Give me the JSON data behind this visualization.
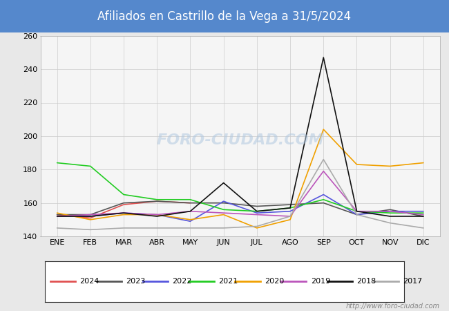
{
  "title": "Afiliados en Castrillo de la Vega a 31/5/2024",
  "title_bg_color": "#5588cc",
  "title_text_color": "#ffffff",
  "ylim": [
    140,
    260
  ],
  "yticks": [
    140,
    160,
    180,
    200,
    220,
    240,
    260
  ],
  "months": [
    "ENE",
    "FEB",
    "MAR",
    "ABR",
    "MAY",
    "JUN",
    "JUL",
    "AGO",
    "SEP",
    "OCT",
    "NOV",
    "DIC"
  ],
  "series": {
    "2024": {
      "color": "#e05050",
      "data": [
        153,
        151,
        159,
        161,
        160,
        null,
        null,
        null,
        null,
        null,
        null,
        null
      ]
    },
    "2023": {
      "color": "#555555",
      "data": [
        153,
        153,
        160,
        161,
        160,
        160,
        158,
        159,
        160,
        153,
        156,
        152
      ]
    },
    "2022": {
      "color": "#5555dd",
      "data": [
        152,
        152,
        154,
        153,
        149,
        161,
        154,
        155,
        165,
        153,
        155,
        155
      ]
    },
    "2021": {
      "color": "#22cc22",
      "data": [
        184,
        182,
        165,
        162,
        162,
        156,
        155,
        157,
        162,
        155,
        154,
        154
      ]
    },
    "2020": {
      "color": "#f0a000",
      "data": [
        154,
        150,
        153,
        153,
        150,
        153,
        145,
        150,
        204,
        183,
        182,
        184
      ]
    },
    "2019": {
      "color": "#bb55bb",
      "data": [
        152,
        153,
        154,
        153,
        155,
        154,
        153,
        152,
        179,
        155,
        155,
        153
      ]
    },
    "2018": {
      "color": "#111111",
      "data": [
        152,
        152,
        154,
        152,
        155,
        172,
        155,
        157,
        247,
        155,
        152,
        152
      ]
    },
    "2017": {
      "color": "#aaaaaa",
      "data": [
        145,
        144,
        145,
        145,
        145,
        145,
        146,
        152,
        186,
        153,
        148,
        145
      ]
    }
  },
  "legend_order": [
    "2024",
    "2023",
    "2022",
    "2021",
    "2020",
    "2019",
    "2018",
    "2017"
  ],
  "series_colors_legend": {
    "2024": "#e05050",
    "2023": "#555555",
    "2022": "#5555dd",
    "2021": "#22cc22",
    "2020": "#f0a000",
    "2019": "#bb55bb",
    "2018": "#111111",
    "2017": "#aaaaaa"
  },
  "watermark_chart": "FORO-CIUDAD.COM",
  "watermark_url": "http://www.foro-ciudad.com",
  "bg_color": "#e8e8e8",
  "plot_bg_color": "#f5f5f5",
  "grid_color": "#cccccc"
}
